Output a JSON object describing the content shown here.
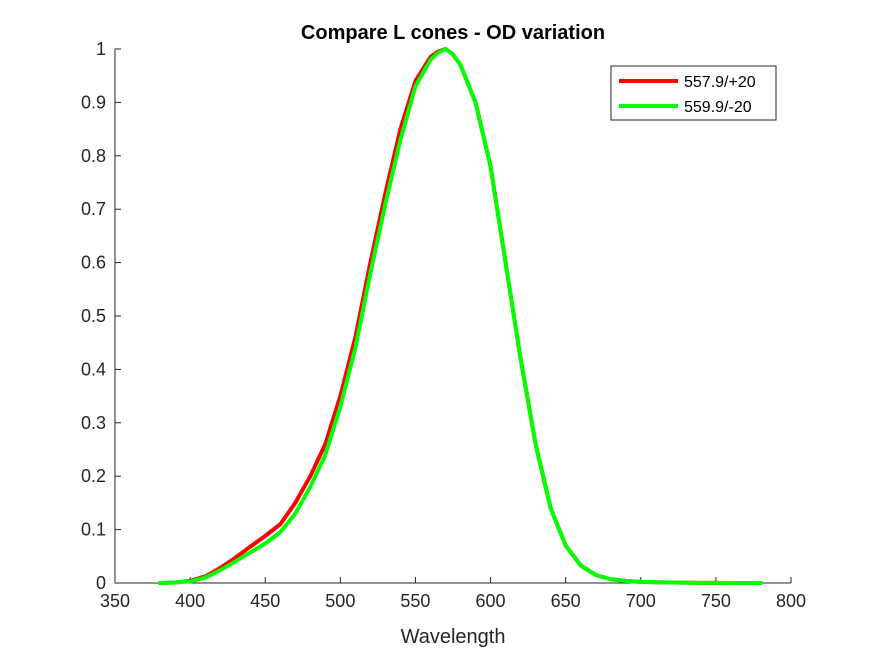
{
  "chart_data": {
    "type": "line",
    "title": "Compare L cones - OD variation",
    "xlabel": "Wavelength",
    "ylabel": "",
    "xlim": [
      350,
      800
    ],
    "ylim": [
      0,
      1
    ],
    "xticks": [
      "350",
      "400",
      "450",
      "500",
      "550",
      "600",
      "650",
      "700",
      "750",
      "800"
    ],
    "yticks": [
      "0",
      "0.1",
      "0.2",
      "0.3",
      "0.4",
      "0.5",
      "0.6",
      "0.7",
      "0.8",
      "0.9",
      "1"
    ],
    "grid": false,
    "legend_position": "top-right",
    "series": [
      {
        "name": "557.9/+20",
        "color": "#ff0000",
        "x": [
          380,
          390,
          400,
          410,
          420,
          430,
          440,
          450,
          460,
          470,
          480,
          490,
          500,
          510,
          520,
          530,
          540,
          550,
          560,
          565,
          570,
          575,
          580,
          590,
          600,
          610,
          620,
          630,
          640,
          650,
          660,
          670,
          680,
          690,
          700,
          710,
          720,
          730,
          740,
          750,
          760,
          770,
          780
        ],
        "y": [
          0.0,
          0.001,
          0.004,
          0.012,
          0.028,
          0.047,
          0.068,
          0.088,
          0.11,
          0.15,
          0.2,
          0.26,
          0.35,
          0.46,
          0.6,
          0.73,
          0.85,
          0.94,
          0.985,
          0.995,
          1.0,
          0.99,
          0.97,
          0.9,
          0.78,
          0.6,
          0.42,
          0.26,
          0.14,
          0.07,
          0.033,
          0.015,
          0.007,
          0.004,
          0.002,
          0.0015,
          0.001,
          0.0006,
          0.0003,
          0.0002,
          0.0001,
          0.0001,
          0.0
        ]
      },
      {
        "name": "559.9/-20",
        "color": "#00ff00",
        "x": [
          380,
          390,
          400,
          410,
          420,
          430,
          440,
          450,
          460,
          470,
          480,
          490,
          500,
          510,
          520,
          530,
          540,
          550,
          560,
          565,
          570,
          575,
          580,
          590,
          600,
          610,
          620,
          630,
          640,
          650,
          660,
          670,
          680,
          690,
          700,
          710,
          720,
          730,
          740,
          750,
          760,
          770,
          780
        ],
        "y": [
          0.0,
          0.001,
          0.003,
          0.01,
          0.024,
          0.04,
          0.057,
          0.074,
          0.095,
          0.13,
          0.18,
          0.24,
          0.33,
          0.44,
          0.58,
          0.71,
          0.83,
          0.93,
          0.98,
          0.993,
          1.0,
          0.99,
          0.97,
          0.9,
          0.78,
          0.6,
          0.42,
          0.26,
          0.14,
          0.07,
          0.033,
          0.015,
          0.007,
          0.004,
          0.002,
          0.0015,
          0.001,
          0.0006,
          0.0003,
          0.0002,
          0.0001,
          0.0001,
          0.0
        ]
      }
    ]
  }
}
